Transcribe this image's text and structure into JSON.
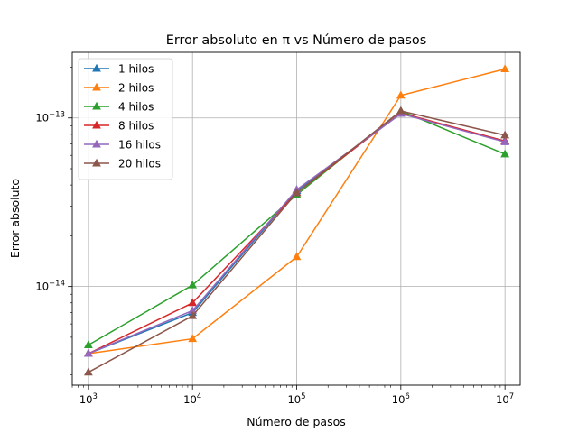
{
  "chart_data": {
    "type": "line",
    "title": "Error absoluto en π vs Número de pasos",
    "xlabel": "Número de pasos",
    "ylabel": "Error absoluto",
    "xscale": "log",
    "yscale": "log",
    "xlim": [
      700,
      14000000
    ],
    "ylim": [
      2.6e-15,
      2.45e-13
    ],
    "grid": true,
    "legend_position": "top-left",
    "x": [
      1000,
      10000,
      100000,
      1000000,
      10000000
    ],
    "x_ticks": [
      {
        "value": 1000,
        "base": "10",
        "exp": "3"
      },
      {
        "value": 10000,
        "base": "10",
        "exp": "4"
      },
      {
        "value": 100000,
        "base": "10",
        "exp": "5"
      },
      {
        "value": 1000000,
        "base": "10",
        "exp": "6"
      },
      {
        "value": 10000000,
        "base": "10",
        "exp": "7"
      }
    ],
    "y_ticks": [
      {
        "value": 1e-14,
        "base": "10",
        "exp": "−14"
      },
      {
        "value": 1e-13,
        "base": "10",
        "exp": "−13"
      }
    ],
    "series": [
      {
        "name": "1 hilos",
        "color": "#1f77b4",
        "values": [
          4e-15,
          7e-15,
          3.7e-14,
          1.06e-13,
          7.3e-14
        ]
      },
      {
        "name": "2 hilos",
        "color": "#ff7f0e",
        "values": [
          4e-15,
          4.9e-15,
          1.5e-14,
          1.36e-13,
          1.95e-13
        ]
      },
      {
        "name": "4 hilos",
        "color": "#2ca02c",
        "values": [
          4.5e-15,
          1.02e-14,
          3.5e-14,
          1.1e-13,
          6.1e-14
        ]
      },
      {
        "name": "8 hilos",
        "color": "#d62728",
        "values": [
          4e-15,
          8e-15,
          3.6e-14,
          1.07e-13,
          7.3e-14
        ]
      },
      {
        "name": "16 hilos",
        "color": "#9467bd",
        "values": [
          4e-15,
          7.2e-15,
          3.75e-14,
          1.06e-13,
          7.2e-14
        ]
      },
      {
        "name": "20 hilos",
        "color": "#8c564b",
        "values": [
          3.1e-15,
          6.7e-15,
          3.6e-14,
          1.1e-13,
          7.9e-14
        ]
      }
    ]
  }
}
